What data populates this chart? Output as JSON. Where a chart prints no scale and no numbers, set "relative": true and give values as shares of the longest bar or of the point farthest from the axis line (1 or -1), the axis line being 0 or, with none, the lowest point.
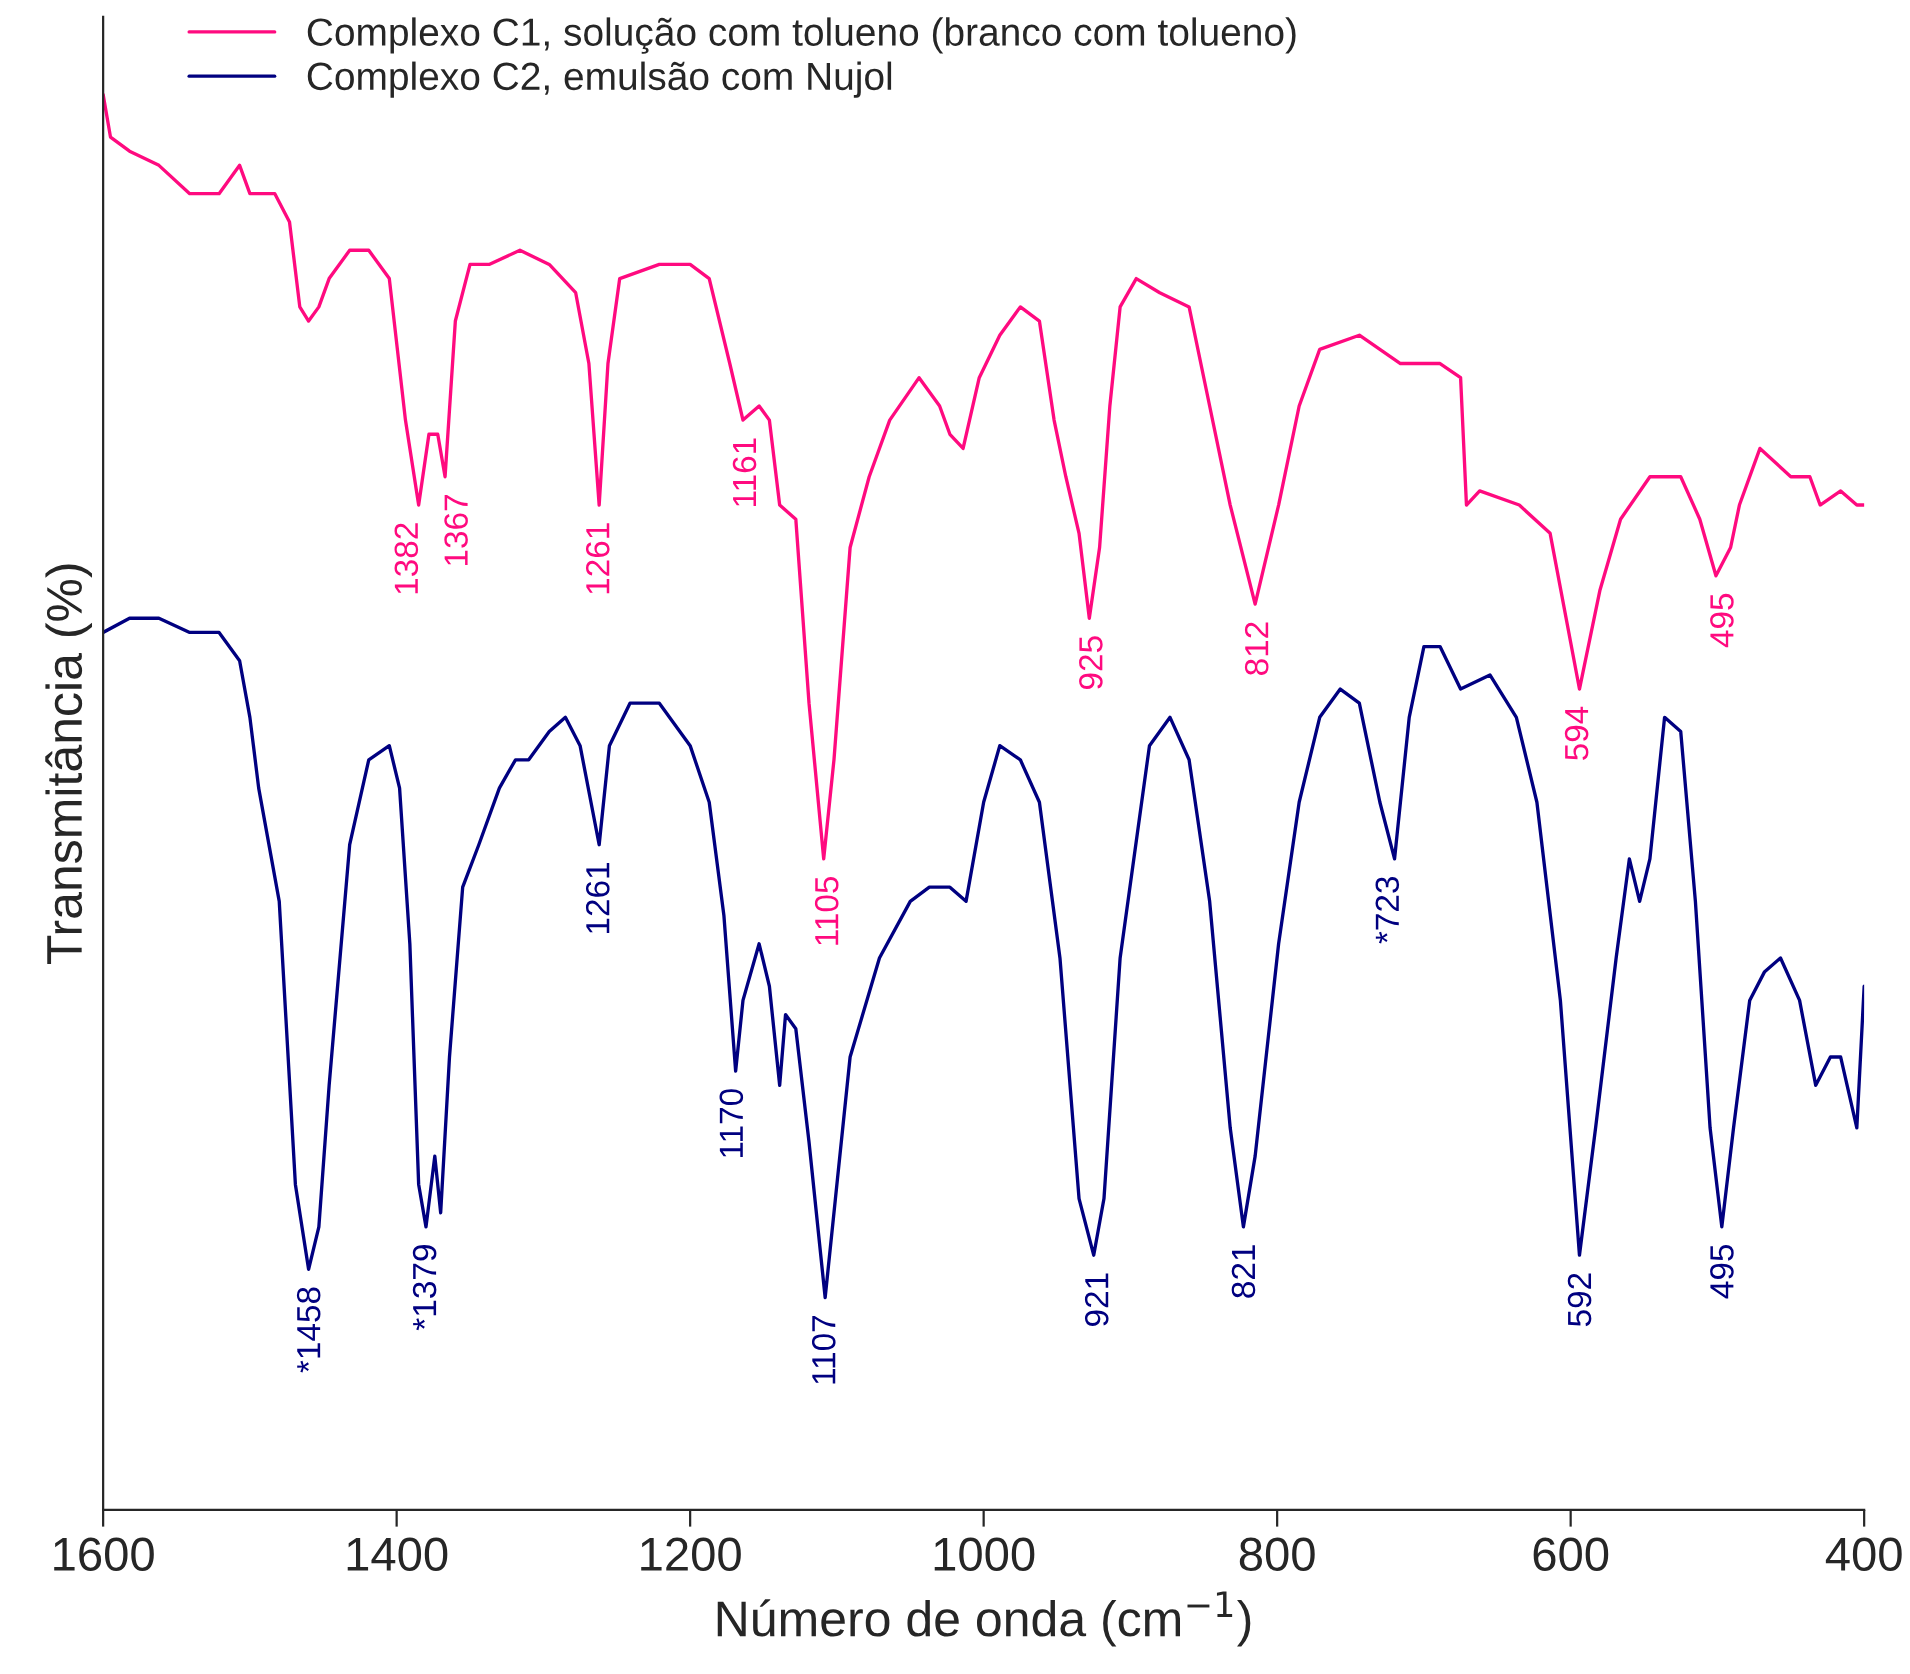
{
  "chart_data": {
    "type": "line",
    "relative": true,
    "xlabel": "Número de onda (cm$^{−1}$)",
    "ylabel": "Transmitância (%)",
    "xlim": [
      1600,
      400
    ],
    "xticks": [
      1600,
      1400,
      1200,
      1000,
      800,
      600,
      400
    ],
    "legend": "top left",
    "grid": false,
    "series": [
      {
        "name": "Complexo C1, solução com tolueno (branco com tolueno)",
        "color": "#ff0a7f",
        "x": [
          1600,
          1595,
          1582,
          1562,
          1541,
          1521,
          1507,
          1500,
          1483,
          1473,
          1466,
          1460,
          1453,
          1446,
          1432,
          1419,
          1405,
          1394,
          1385,
          1378,
          1372,
          1367,
          1360,
          1350,
          1337,
          1316,
          1296,
          1278,
          1269,
          1262,
          1256,
          1248,
          1221,
          1200,
          1187,
          1173,
          1164,
          1153,
          1146,
          1139,
          1128,
          1119,
          1109,
          1102,
          1091,
          1078,
          1064,
          1044,
          1030,
          1023,
          1014,
          1003,
          989,
          975,
          962,
          952,
          944,
          935,
          928,
          921,
          914,
          907,
          896,
          880,
          860,
          846,
          832,
          815,
          799,
          785,
          771,
          744,
          716,
          689,
          675,
          671,
          662,
          635,
          614,
          594,
          580,
          566,
          546,
          525,
          512,
          501,
          491,
          485,
          471,
          450,
          437,
          430,
          416,
          405,
          400
        ],
        "values": [
          1.0,
          0.97,
          0.96,
          0.95,
          0.93,
          0.93,
          0.95,
          0.93,
          0.93,
          0.91,
          0.85,
          0.84,
          0.85,
          0.87,
          0.89,
          0.89,
          0.87,
          0.77,
          0.71,
          0.76,
          0.76,
          0.73,
          0.84,
          0.88,
          0.88,
          0.89,
          0.88,
          0.86,
          0.81,
          0.71,
          0.81,
          0.87,
          0.88,
          0.88,
          0.87,
          0.81,
          0.77,
          0.78,
          0.77,
          0.71,
          0.7,
          0.57,
          0.46,
          0.53,
          0.68,
          0.73,
          0.77,
          0.8,
          0.78,
          0.76,
          0.75,
          0.8,
          0.83,
          0.85,
          0.84,
          0.77,
          0.73,
          0.69,
          0.63,
          0.68,
          0.78,
          0.85,
          0.87,
          0.86,
          0.85,
          0.78,
          0.71,
          0.64,
          0.71,
          0.78,
          0.82,
          0.83,
          0.81,
          0.81,
          0.8,
          0.71,
          0.72,
          0.71,
          0.69,
          0.58,
          0.65,
          0.7,
          0.73,
          0.73,
          0.7,
          0.66,
          0.68,
          0.71,
          0.75,
          0.73,
          0.73,
          0.71,
          0.72,
          0.71,
          0.71
        ]
      },
      {
        "name": "Complexo C2, emulsão com Nujol",
        "color": "#000080",
        "x": [
          1600,
          1582,
          1562,
          1541,
          1521,
          1507,
          1500,
          1494,
          1480,
          1469,
          1460,
          1453,
          1446,
          1432,
          1419,
          1405,
          1398,
          1391,
          1385,
          1380,
          1374,
          1370,
          1364,
          1355,
          1344,
          1330,
          1319,
          1310,
          1296,
          1285,
          1275,
          1262,
          1255,
          1241,
          1221,
          1200,
          1187,
          1177,
          1169,
          1164,
          1153,
          1146,
          1139,
          1135,
          1128,
          1119,
          1108,
          1101,
          1091,
          1071,
          1050,
          1037,
          1023,
          1012,
          1000,
          989,
          975,
          962,
          948,
          935,
          925,
          918,
          907,
          887,
          873,
          860,
          846,
          832,
          823,
          815,
          799,
          785,
          771,
          757,
          744,
          730,
          720,
          710,
          700,
          689,
          675,
          655,
          637,
          623,
          607,
          594,
          583,
          569,
          560,
          553,
          546,
          536,
          525,
          515,
          505,
          497,
          489,
          478,
          468,
          457,
          444,
          433,
          423,
          416,
          405,
          400
        ],
        "values": [
          0.62,
          0.63,
          0.63,
          0.62,
          0.62,
          0.6,
          0.56,
          0.51,
          0.43,
          0.23,
          0.17,
          0.2,
          0.3,
          0.47,
          0.53,
          0.54,
          0.51,
          0.4,
          0.23,
          0.2,
          0.25,
          0.21,
          0.32,
          0.44,
          0.47,
          0.51,
          0.53,
          0.53,
          0.55,
          0.56,
          0.54,
          0.47,
          0.54,
          0.57,
          0.57,
          0.54,
          0.5,
          0.42,
          0.31,
          0.36,
          0.4,
          0.37,
          0.3,
          0.35,
          0.34,
          0.26,
          0.15,
          0.22,
          0.32,
          0.39,
          0.43,
          0.44,
          0.44,
          0.43,
          0.5,
          0.54,
          0.53,
          0.5,
          0.39,
          0.22,
          0.18,
          0.22,
          0.39,
          0.54,
          0.56,
          0.53,
          0.43,
          0.27,
          0.2,
          0.25,
          0.4,
          0.5,
          0.56,
          0.58,
          0.57,
          0.5,
          0.46,
          0.56,
          0.61,
          0.61,
          0.58,
          0.59,
          0.56,
          0.5,
          0.36,
          0.18,
          0.27,
          0.39,
          0.46,
          0.43,
          0.46,
          0.56,
          0.55,
          0.43,
          0.27,
          0.2,
          0.27,
          0.36,
          0.38,
          0.39,
          0.36,
          0.3,
          0.32,
          0.32,
          0.27,
          0.37
        ]
      }
    ],
    "annotations": [
      {
        "text": "1382",
        "x": 1382,
        "y": 0.71
      },
      {
        "text": "1367",
        "x": 1367,
        "y": 0.73
      },
      {
        "text": "1261",
        "x": 1261,
        "y": 0.71
      },
      {
        "text": "1161",
        "x": 1161,
        "y": 0.77
      },
      {
        "text": "1105",
        "x": 1105,
        "y": 0.46
      },
      {
        "text": "925",
        "x": 925,
        "y": 0.63
      },
      {
        "text": "812",
        "x": 812,
        "y": 0.64
      },
      {
        "text": "594",
        "x": 594,
        "y": 0.58
      },
      {
        "text": "495",
        "x": 495,
        "y": 0.66
      },
      {
        "text": "*1458",
        "x": 1458,
        "y": 0.17
      },
      {
        "text": "*1379",
        "x": 1379,
        "y": 0.2
      },
      {
        "text": "1261",
        "x": 1261,
        "y": 0.47
      },
      {
        "text": "1170",
        "x": 1170,
        "y": 0.31
      },
      {
        "text": "1107",
        "x": 1107,
        "y": 0.15
      },
      {
        "text": "921",
        "x": 921,
        "y": 0.18
      },
      {
        "text": "821",
        "x": 821,
        "y": 0.2
      },
      {
        "text": "*723",
        "x": 723,
        "y": 0.46
      },
      {
        "text": "592",
        "x": 592,
        "y": 0.18
      },
      {
        "text": "495",
        "x": 495,
        "y": 0.2
      }
    ]
  }
}
